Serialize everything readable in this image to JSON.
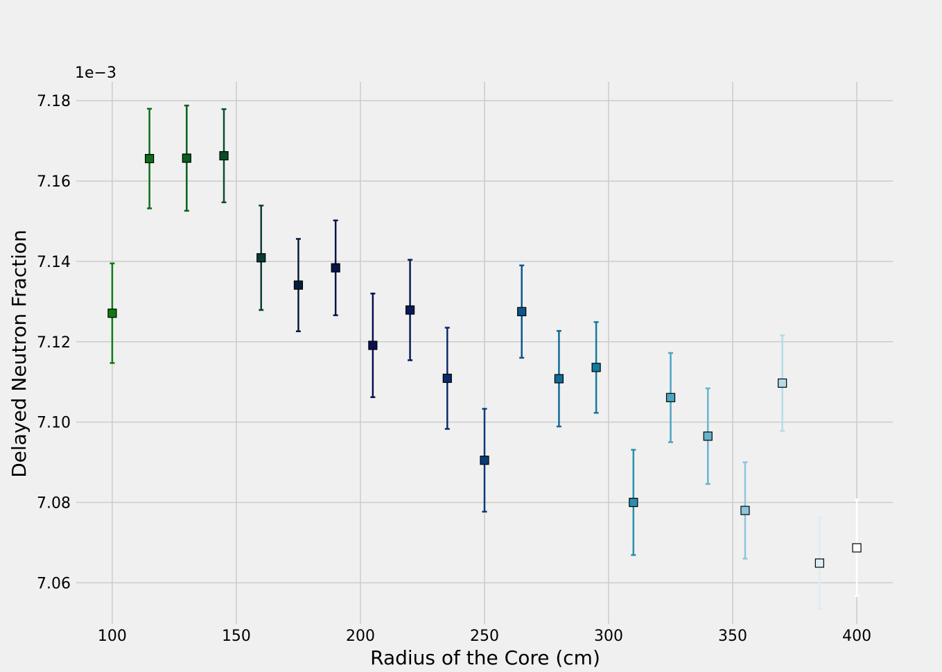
{
  "chart_data": {
    "type": "scatter",
    "title": "",
    "xlabel": "Radius of the Core (cm)",
    "ylabel": "Delayed Neutron Fraction",
    "offset_text": "1e−3",
    "xlim": [
      85.5,
      414.5
    ],
    "ylim": [
      7.0497,
      7.1847
    ],
    "x_ticks": [
      100,
      150,
      200,
      250,
      300,
      350,
      400
    ],
    "y_ticks": [
      7.06,
      7.08,
      7.1,
      7.12,
      7.14,
      7.16,
      7.18
    ],
    "y_tick_labels": [
      "7.06",
      "7.08",
      "7.10",
      "7.12",
      "7.14",
      "7.16",
      "7.18"
    ],
    "grid": true,
    "marker": "square",
    "points": [
      {
        "x": 100,
        "y": 7.1271,
        "err": 0.0124,
        "color": "#0e7b12"
      },
      {
        "x": 115,
        "y": 7.1656,
        "err": 0.0124,
        "color": "#0b6d15"
      },
      {
        "x": 130,
        "y": 7.1657,
        "err": 0.0131,
        "color": "#0b5e1e"
      },
      {
        "x": 145,
        "y": 7.1663,
        "err": 0.0116,
        "color": "#0a4e28"
      },
      {
        "x": 160,
        "y": 7.1409,
        "err": 0.013,
        "color": "#0a3b37"
      },
      {
        "x": 175,
        "y": 7.1341,
        "err": 0.0115,
        "color": "#081d3a"
      },
      {
        "x": 190,
        "y": 7.1384,
        "err": 0.0118,
        "color": "#081446"
      },
      {
        "x": 205,
        "y": 7.1191,
        "err": 0.0129,
        "color": "#0a0f52"
      },
      {
        "x": 220,
        "y": 7.1279,
        "err": 0.0125,
        "color": "#0a1a5c"
      },
      {
        "x": 235,
        "y": 7.1109,
        "err": 0.0126,
        "color": "#0b2b6c"
      },
      {
        "x": 250,
        "y": 7.0905,
        "err": 0.0128,
        "color": "#0b3c7a"
      },
      {
        "x": 265,
        "y": 7.1275,
        "err": 0.0115,
        "color": "#0d558c"
      },
      {
        "x": 280,
        "y": 7.1108,
        "err": 0.0119,
        "color": "#106a96"
      },
      {
        "x": 295,
        "y": 7.1136,
        "err": 0.0113,
        "color": "#147a9e"
      },
      {
        "x": 310,
        "y": 7.08,
        "err": 0.0131,
        "color": "#2a8fab"
      },
      {
        "x": 325,
        "y": 7.1061,
        "err": 0.0111,
        "color": "#4da4c4"
      },
      {
        "x": 340,
        "y": 7.0965,
        "err": 0.0119,
        "color": "#6ab3cf"
      },
      {
        "x": 355,
        "y": 7.078,
        "err": 0.012,
        "color": "#8cc6dc"
      },
      {
        "x": 370,
        "y": 7.1097,
        "err": 0.0119,
        "color": "#b5dbe8"
      },
      {
        "x": 385,
        "y": 7.0649,
        "err": 0.0114,
        "color": "#dcedf3"
      },
      {
        "x": 400,
        "y": 7.0687,
        "err": 0.012,
        "color": "#ffffff"
      }
    ]
  }
}
